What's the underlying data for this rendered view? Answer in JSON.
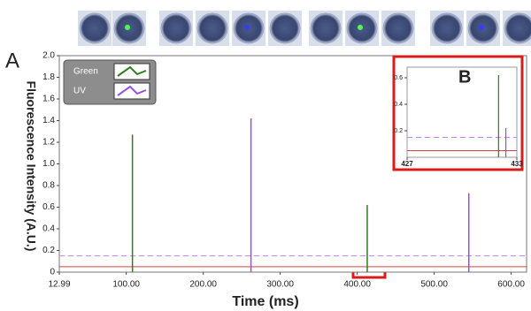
{
  "chart_data": [
    {
      "type": "spike",
      "panel": "A",
      "x_label": "Time (ms)",
      "y_label": "Fluorescence Intensity (A.U.)",
      "series": [
        {
          "name": "Green",
          "color": "#2e7d1e",
          "x": [
            108,
            413
          ],
          "values": [
            1.27,
            0.62
          ]
        },
        {
          "name": "UV",
          "color": "#9b4de0",
          "x": [
            262,
            545
          ],
          "values": [
            1.42,
            0.73
          ]
        }
      ],
      "xlim": [
        12.99,
        620
      ],
      "xticks": [
        12.99,
        {
          "value": 100,
          "label": "100.00"
        },
        {
          "value": 200,
          "label": "200.00"
        },
        {
          "value": 300,
          "label": "300.00"
        },
        {
          "value": 400,
          "label": "400.00"
        },
        {
          "value": 500,
          "label": "500.00"
        },
        {
          "value": 600,
          "label": "600.00"
        }
      ],
      "ylim": [
        0,
        2
      ],
      "yticks": [
        0,
        0.2,
        0.4,
        0.6,
        0.8,
        {
          "value": 1,
          "label": "1.0"
        },
        1.2,
        1.4,
        1.6,
        1.8,
        {
          "value": 2,
          "label": "2.0"
        }
      ],
      "thresholds": [
        {
          "color": "#c77dff",
          "value": 0.15,
          "dashed": true
        },
        {
          "color": "#d94040",
          "value": 0.05,
          "dashed": false
        }
      ],
      "legend": "top-left"
    },
    {
      "type": "spike",
      "panel": "B",
      "series": [
        {
          "name": "Green",
          "color": "#2e7d1e",
          "x": [
            432
          ],
          "values": [
            0.62
          ]
        },
        {
          "name": "UV",
          "color": "#9b4de0",
          "x": [
            432.4
          ],
          "values": [
            0.22
          ]
        }
      ],
      "xlim": [
        427,
        433
      ],
      "xticks": [
        427,
        433
      ],
      "ylim": [
        0,
        0.68
      ],
      "yticks": [
        0.2,
        0.4,
        0.6
      ],
      "thresholds": [
        {
          "color": "#c77dff",
          "value": 0.15,
          "dashed": true
        },
        {
          "color": "#d94040",
          "value": 0.05,
          "dashed": false
        }
      ]
    }
  ]
}
